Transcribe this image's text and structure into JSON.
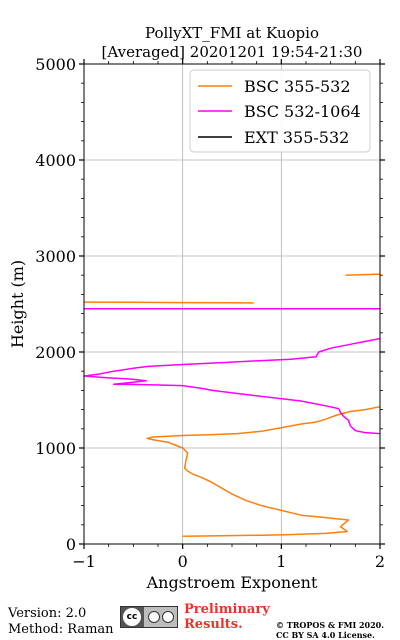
{
  "chart_data": {
    "type": "line",
    "title": "PollyXT_FMI at Kuopio",
    "subtitle": "[Averaged] 20201201 19:54-21:30",
    "xlabel": "Angstroem Exponent",
    "ylabel": "Height (m)",
    "xlim": [
      -1,
      2
    ],
    "ylim": [
      0,
      5000
    ],
    "xticks": [
      "−1",
      "0",
      "1",
      "2"
    ],
    "yticks": [
      "0",
      "1000",
      "2000",
      "3000",
      "4000",
      "5000"
    ],
    "grid": true,
    "legend_position": "top-right",
    "series": [
      {
        "name": "BSC 355-532",
        "color": "#ff7f0e",
        "segments": [
          [
            [
              0.0,
              80
            ],
            [
              0.4,
              85
            ],
            [
              1.0,
              95
            ],
            [
              1.45,
              110
            ],
            [
              1.67,
              130
            ],
            [
              1.6,
              180
            ],
            [
              1.68,
              250
            ],
            [
              1.4,
              280
            ],
            [
              1.2,
              300
            ],
            [
              1.0,
              350
            ],
            [
              0.8,
              400
            ],
            [
              0.65,
              450
            ],
            [
              0.5,
              520
            ],
            [
              0.4,
              580
            ],
            [
              0.3,
              640
            ],
            [
              0.2,
              690
            ],
            [
              0.1,
              730
            ],
            [
              0.05,
              760
            ],
            [
              0.02,
              790
            ],
            [
              0.03,
              850
            ],
            [
              0.05,
              950
            ],
            [
              0.0,
              1000
            ],
            [
              -0.15,
              1060
            ],
            [
              -0.3,
              1085
            ],
            [
              -0.36,
              1100
            ],
            [
              -0.3,
              1115
            ],
            [
              0.0,
              1130
            ],
            [
              0.3,
              1140
            ],
            [
              0.55,
              1150
            ],
            [
              0.8,
              1175
            ],
            [
              1.0,
              1210
            ],
            [
              1.2,
              1250
            ],
            [
              1.35,
              1270
            ],
            [
              1.45,
              1300
            ],
            [
              1.55,
              1340
            ],
            [
              1.7,
              1380
            ],
            [
              1.85,
              1400
            ],
            [
              1.95,
              1420
            ],
            [
              2.0,
              1430
            ]
          ],
          [
            [
              -1.0,
              2520
            ],
            [
              -0.5,
              2518
            ],
            [
              0.0,
              2515
            ],
            [
              0.5,
              2512
            ],
            [
              0.72,
              2510
            ]
          ],
          [
            [
              1.65,
              2800
            ],
            [
              1.8,
              2805
            ],
            [
              1.95,
              2810
            ],
            [
              2.0,
              2810
            ]
          ]
        ]
      },
      {
        "name": "BSC 532-1064",
        "color": "#ff00ff",
        "segments": [
          [
            [
              2.0,
              1150
            ],
            [
              1.85,
              1160
            ],
            [
              1.75,
              1180
            ],
            [
              1.7,
              1230
            ],
            [
              1.68,
              1290
            ],
            [
              1.63,
              1330
            ],
            [
              1.6,
              1370
            ],
            [
              1.58,
              1410
            ],
            [
              1.45,
              1440
            ],
            [
              1.2,
              1490
            ],
            [
              0.7,
              1550
            ],
            [
              0.3,
              1600
            ],
            [
              0.2,
              1620
            ],
            [
              0.0,
              1650
            ],
            [
              -0.4,
              1660
            ],
            [
              -0.7,
              1665
            ],
            [
              -0.55,
              1680
            ],
            [
              -0.37,
              1700
            ],
            [
              -0.55,
              1720
            ],
            [
              -0.75,
              1730
            ],
            [
              -1.0,
              1750
            ],
            [
              -0.85,
              1770
            ],
            [
              -0.7,
              1800
            ],
            [
              -0.5,
              1830
            ],
            [
              -0.35,
              1850
            ],
            [
              0.0,
              1870
            ],
            [
              0.4,
              1890
            ],
            [
              0.8,
              1910
            ],
            [
              1.1,
              1925
            ],
            [
              1.35,
              1950
            ],
            [
              1.38,
              2000
            ],
            [
              1.5,
              2040
            ],
            [
              1.7,
              2080
            ],
            [
              1.8,
              2100
            ],
            [
              1.9,
              2120
            ],
            [
              2.0,
              2140
            ]
          ],
          [
            [
              -1.0,
              2450
            ],
            [
              0.0,
              2450
            ],
            [
              1.0,
              2450
            ],
            [
              2.0,
              2450
            ]
          ]
        ]
      },
      {
        "name": "EXT 355-532",
        "color": "#000000",
        "segments": []
      }
    ]
  },
  "footer": {
    "version": "Version: 2.0",
    "method": "Method: Raman",
    "preliminary_line1": "Preliminary",
    "preliminary_line2": "Results.",
    "copyright_line1": "© TROPOS & FMI 2020.",
    "copyright_line2": "CC BY SA 4.0 License."
  },
  "license_badge": {
    "text": "cc",
    "icon": "cc-by-sa-icon"
  }
}
